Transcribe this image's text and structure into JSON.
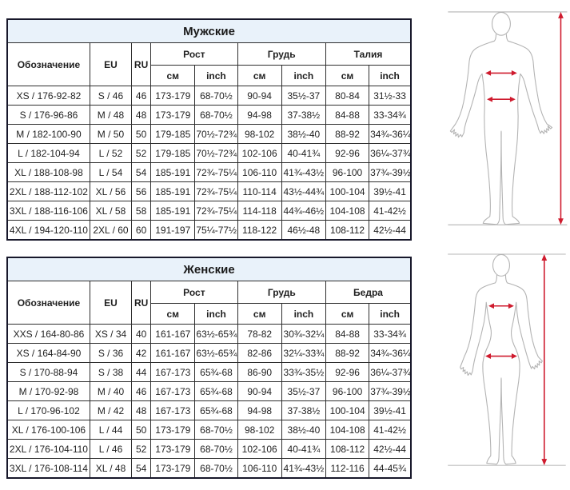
{
  "colors": {
    "title_bg": "#e9f2fa",
    "outer_border": "#17172a",
    "grid_line": "#2e2e2e",
    "text": "#1f1f1f",
    "arrow_red": "#cf1b2e",
    "figure_outline": "#b3b3b3",
    "guide_line": "#9f9f9f"
  },
  "tables": [
    {
      "title": "Мужские",
      "headers": {
        "designation": "Обозначение",
        "eu": "EU",
        "ru": "RU",
        "groups": [
          "Рост",
          "Грудь",
          "Талия"
        ],
        "cm": "см",
        "inch": "inch"
      },
      "rows": [
        [
          "XS / 176-92-82",
          "S / 46",
          "46",
          "173-179",
          "68-70½",
          "90-94",
          "35½-37",
          "80-84",
          "31½-33"
        ],
        [
          "S / 176-96-86",
          "M / 48",
          "48",
          "173-179",
          "68-70½",
          "94-98",
          "37-38½",
          "84-88",
          "33-34¾"
        ],
        [
          "M / 182-100-90",
          "M / 50",
          "50",
          "179-185",
          "70½-72¾",
          "98-102",
          "38½-40",
          "88-92",
          "34¾-36¼"
        ],
        [
          "L / 182-104-94",
          "L / 52",
          "52",
          "179-185",
          "70½-72¾",
          "102-106",
          "40-41¾",
          "92-96",
          "36¼-37¾"
        ],
        [
          "XL / 188-108-98",
          "L / 54",
          "54",
          "185-191",
          "72¾-75¼",
          "106-110",
          "41¾-43½",
          "96-100",
          "37¾-39½"
        ],
        [
          "2XL / 188-112-102",
          "XL / 56",
          "56",
          "185-191",
          "72¾-75¼",
          "110-114",
          "43½-44¾",
          "100-104",
          "39½-41"
        ],
        [
          "3XL / 188-116-106",
          "XL / 58",
          "58",
          "185-191",
          "72¾-75¼",
          "114-118",
          "44¾-46½",
          "104-108",
          "41-42½"
        ],
        [
          "4XL / 194-120-110",
          "2XL / 60",
          "60",
          "191-197",
          "75¼-77½",
          "118-122",
          "46½-48",
          "108-112",
          "42½-44"
        ]
      ]
    },
    {
      "title": "Женские",
      "headers": {
        "designation": "Обозначение",
        "eu": "EU",
        "ru": "RU",
        "groups": [
          "Рост",
          "Грудь",
          "Бедра"
        ],
        "cm": "см",
        "inch": "inch"
      },
      "rows": [
        [
          "XXS / 164-80-86",
          "XS / 34",
          "40",
          "161-167",
          "63½-65¾",
          "78-82",
          "30¾-32¼",
          "84-88",
          "33-34¾"
        ],
        [
          "XS / 164-84-90",
          "S / 36",
          "42",
          "161-167",
          "63½-65¾",
          "82-86",
          "32¼-33¾",
          "88-92",
          "34¾-36¼"
        ],
        [
          "S / 170-88-94",
          "S / 38",
          "44",
          "167-173",
          "65¾-68",
          "86-90",
          "33¾-35½",
          "92-96",
          "36¼-37¾"
        ],
        [
          "M / 170-92-98",
          "M / 40",
          "46",
          "167-173",
          "65¾-68",
          "90-94",
          "35½-37",
          "96-100",
          "37¾-39½"
        ],
        [
          "L / 170-96-102",
          "M / 42",
          "48",
          "167-173",
          "65¾-68",
          "94-98",
          "37-38½",
          "100-104",
          "39½-41"
        ],
        [
          "XL / 176-100-106",
          "L / 44",
          "50",
          "173-179",
          "68-70½",
          "98-102",
          "38½-40",
          "104-108",
          "41-42½"
        ],
        [
          "2XL / 176-104-110",
          "L / 46",
          "52",
          "173-179",
          "68-70½",
          "102-106",
          "40-41¾",
          "108-112",
          "42½-44"
        ],
        [
          "3XL / 176-108-114",
          "XL / 48",
          "54",
          "173-179",
          "68-70½",
          "106-110",
          "41¾-43½",
          "112-116",
          "44-45¾"
        ]
      ]
    }
  ],
  "figures": [
    {
      "name": "male body measurement diagram",
      "arrows": [
        "height",
        "chest",
        "waist"
      ]
    },
    {
      "name": "female body measurement diagram",
      "arrows": [
        "height",
        "chest",
        "hips"
      ]
    }
  ]
}
